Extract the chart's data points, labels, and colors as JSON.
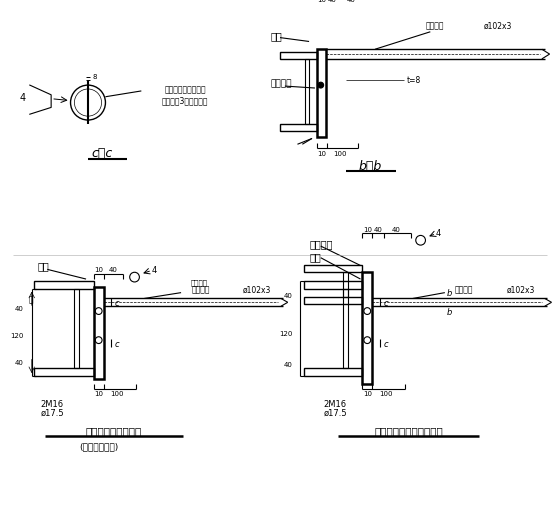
{
  "bg_color": "#ffffff",
  "line_color": "#000000",
  "label_cc": "c-c",
  "label_bb": "b-b",
  "bottom_left_label": "刚性系杆连接详图二",
  "bottom_left_sub": "(用于加劲腹外)",
  "bottom_right_label": "屋脊外刚性系杆连接详图",
  "gangliang": "钢梁",
  "gangliangduanban": "钢梁端板",
  "hanjieguan": "焊接钢管",
  "phi102x3": "ø102x3",
  "m2m16": "2M16",
  "phi175": "ø17.5",
  "kaicement": "钢管开槽后插入钢板",
  "qiemen": "且端头用3厚钢板焊严"
}
